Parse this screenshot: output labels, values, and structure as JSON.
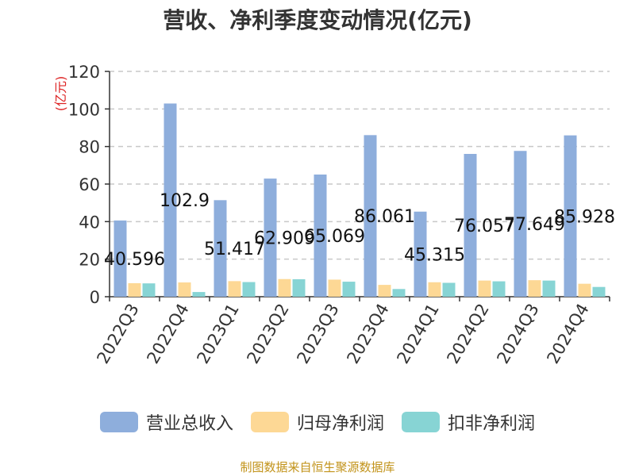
{
  "chart_data": {
    "type": "bar",
    "title": "营收、净利季度变动情况(亿元)",
    "ylabel": "(亿元)",
    "ylim": [
      0,
      120
    ],
    "yticks": [
      0,
      20,
      40,
      60,
      80,
      100,
      120
    ],
    "grid": true,
    "legend_position": "bottom",
    "categories": [
      "2022Q3",
      "2022Q4",
      "2023Q1",
      "2023Q2",
      "2023Q3",
      "2023Q4",
      "2024Q1",
      "2024Q2",
      "2024Q3",
      "2024Q4"
    ],
    "series": [
      {
        "name": "营业总收入",
        "color": "#8eaedc",
        "values": [
          40.596,
          102.9,
          51.417,
          62.909,
          65.069,
          86.061,
          45.315,
          76.057,
          77.649,
          85.928
        ],
        "labels": [
          "40.596",
          "102.9",
          "51.417",
          "62.909",
          "65.069",
          "86.061",
          "45.315",
          "76.057",
          "77.649",
          "85.928"
        ]
      },
      {
        "name": "归母净利润",
        "color": "#fdd895",
        "values": [
          7.2,
          7.6,
          8.3,
          9.4,
          9.1,
          6.3,
          7.7,
          8.6,
          8.8,
          6.9
        ]
      },
      {
        "name": "扣非净利润",
        "color": "#87d4d4",
        "values": [
          7.1,
          2.5,
          7.8,
          9.3,
          8.0,
          4.1,
          7.4,
          8.2,
          8.6,
          5.2
        ]
      }
    ],
    "source": "制图数据来自恒生聚源数据库"
  }
}
